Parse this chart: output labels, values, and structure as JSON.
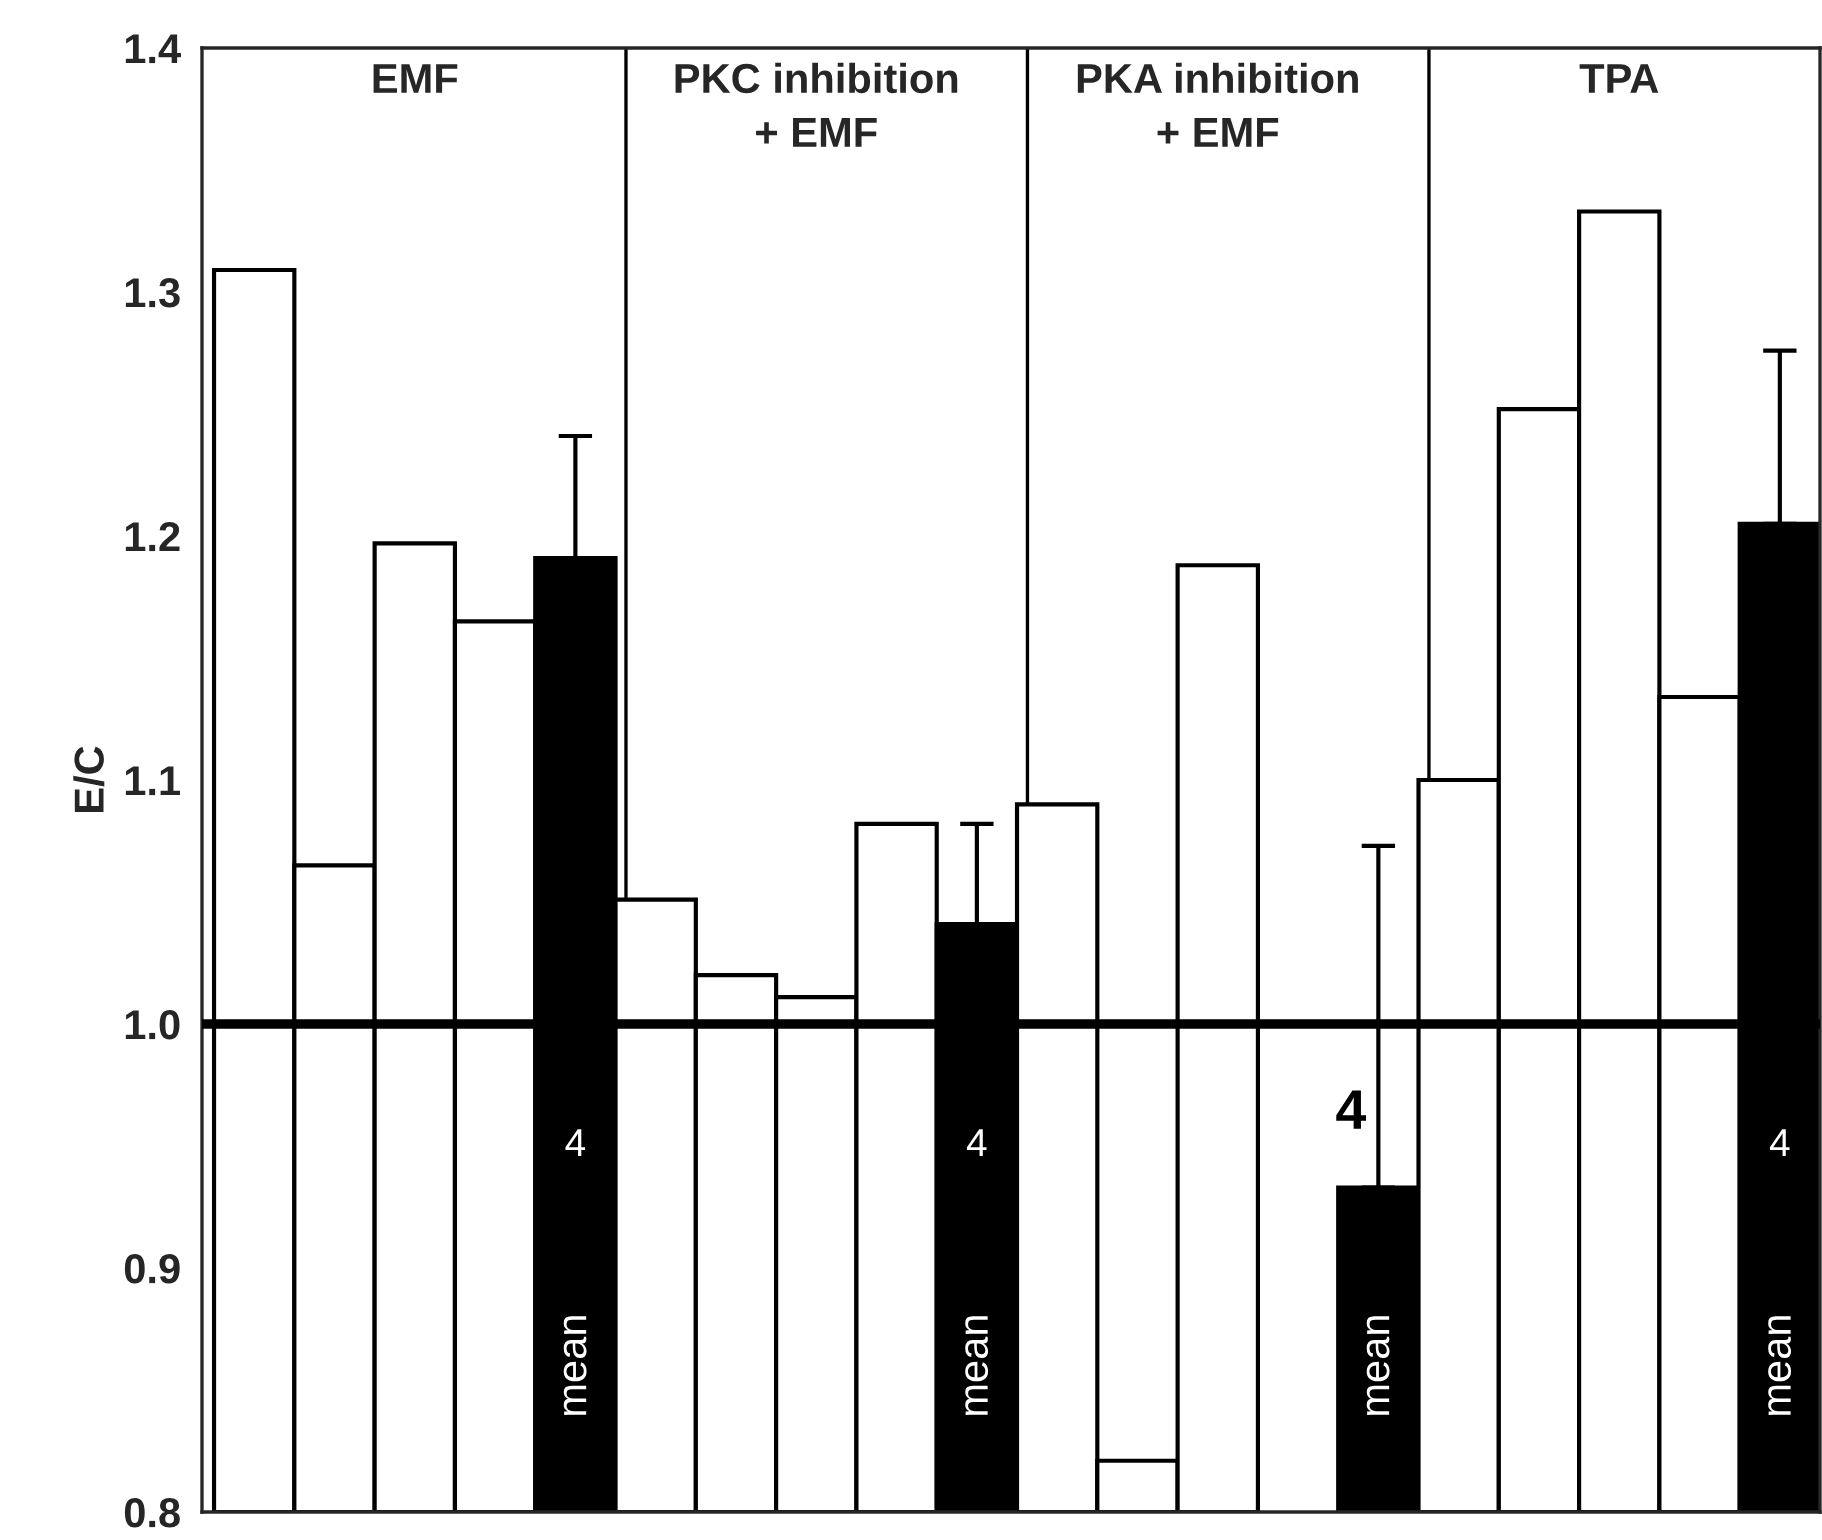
{
  "chart_data": {
    "type": "bar",
    "ylabel": "E/C",
    "categories": [
      null,
      null,
      null,
      null,
      null,
      null,
      null,
      null,
      null,
      null,
      null,
      null,
      null,
      null,
      null,
      null,
      null,
      null,
      null,
      null
    ],
    "values": [
      1.309,
      1.065,
      1.197,
      1.165,
      1.191,
      1.051,
      1.02,
      1.011,
      1.082,
      1.041,
      1.09,
      0.821,
      1.188,
      null,
      0.933,
      1.1,
      1.252,
      1.333,
      1.134,
      1.205
    ],
    "colors": [
      "#ffffff",
      "#ffffff",
      "#ffffff",
      "#ffffff",
      "#000000",
      "#ffffff",
      "#ffffff",
      "#ffffff",
      "#ffffff",
      "#000000",
      "#ffffff",
      "#ffffff",
      "#ffffff",
      "#ffffff",
      "#000000",
      "#ffffff",
      "#ffffff",
      "#ffffff",
      "#ffffff",
      "#000000"
    ],
    "errors": [
      null,
      null,
      null,
      null,
      [
        1.191,
        1.241
      ],
      null,
      null,
      null,
      null,
      [
        1.041,
        1.082
      ],
      null,
      null,
      null,
      null,
      [
        0.933,
        1.073
      ],
      null,
      null,
      null,
      null,
      [
        1.205,
        1.276
      ]
    ],
    "ylim": [
      0.8,
      1.4
    ],
    "yticks": [
      0.8,
      0.9,
      {
        "value": 1.0,
        "label": "1.0"
      },
      1.1,
      1.2,
      1.3,
      1.4
    ],
    "ref_lines": [
      {
        "axis": "y",
        "value": 1.0
      }
    ],
    "annotations": [
      "EMF",
      "PKC inhibition\n+ EMF",
      "PKA inhibition\n+ EMF",
      "TPA",
      "4",
      "mean",
      "4",
      "mean",
      "4",
      "mean",
      "4",
      "mean"
    ],
    "grid": false
  }
}
